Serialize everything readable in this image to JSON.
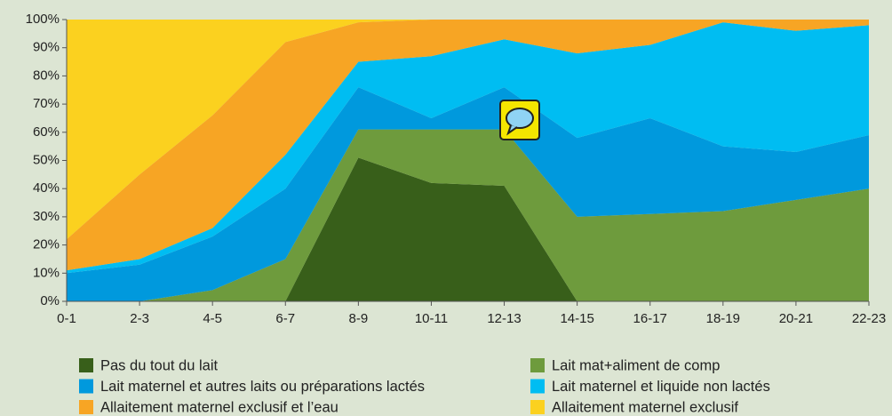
{
  "chart_data": {
    "type": "stacked_area",
    "categories": [
      "0-1",
      "2-3",
      "4-5",
      "6-7",
      "8-9",
      "10-11",
      "12-13",
      "14-15",
      "16-17",
      "18-19",
      "20-21",
      "22-23"
    ],
    "series": [
      {
        "name": "Pas du tout du lait",
        "color": "#385f1a",
        "values": [
          0,
          0,
          0,
          0,
          51,
          42,
          41,
          0,
          0,
          0,
          0,
          0
        ]
      },
      {
        "name": "Lait mat+aliment de comp",
        "color": "#6e9b3d",
        "values": [
          0,
          0,
          4,
          15,
          10,
          19,
          20,
          30,
          31,
          32,
          36,
          40
        ]
      },
      {
        "name": "Lait maternel et autres laits ou préparations lactés",
        "color": "#0099dd",
        "values": [
          10,
          13,
          19,
          25,
          15,
          4,
          15,
          28,
          34,
          23,
          17,
          19
        ]
      },
      {
        "name": "Lait maternel et liquide non lactés",
        "color": "#00bdf2",
        "values": [
          1,
          2,
          3,
          12,
          9,
          22,
          17,
          30,
          26,
          44,
          43,
          39
        ]
      },
      {
        "name": "Allaitement maternel exclusif et l’eau",
        "color": "#f7a524",
        "values": [
          11,
          30,
          40,
          40,
          14,
          13,
          7,
          12,
          9,
          1,
          4,
          2
        ]
      },
      {
        "name": "Allaitement maternel exclusif",
        "color": "#fbd11f",
        "values": [
          78,
          55,
          34,
          8,
          1,
          0,
          0,
          0,
          0,
          0,
          0,
          0
        ]
      }
    ],
    "ylim": [
      0,
      100
    ],
    "yticks": [
      {
        "value": 0,
        "label": "0%"
      },
      {
        "value": 10,
        "label": "10%"
      },
      {
        "value": 20,
        "label": "20%"
      },
      {
        "value": 30,
        "label": "30%"
      },
      {
        "value": 40,
        "label": "40%"
      },
      {
        "value": 50,
        "label": "50%"
      },
      {
        "value": 60,
        "label": "60%"
      },
      {
        "value": 70,
        "label": "70%"
      },
      {
        "value": 80,
        "label": "80%"
      },
      {
        "value": 90,
        "label": "90%"
      },
      {
        "value": 100,
        "label": "100%"
      }
    ]
  }
}
